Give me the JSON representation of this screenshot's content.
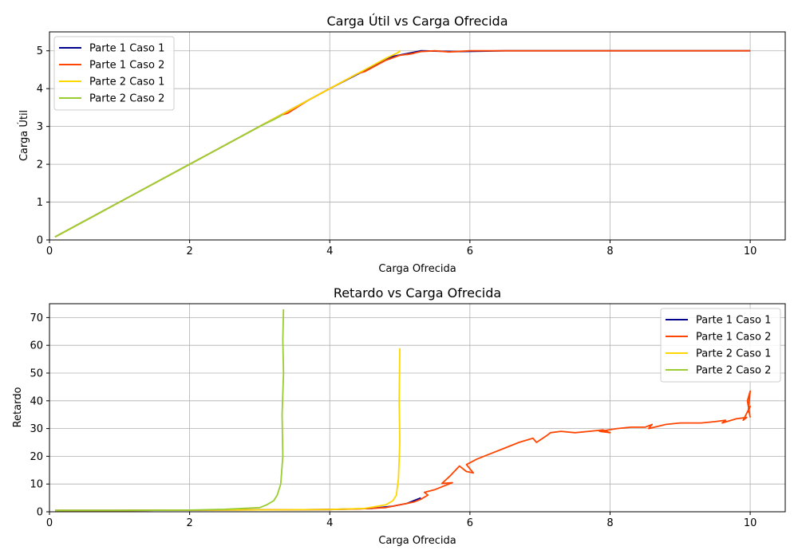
{
  "chart_data": [
    {
      "type": "line",
      "title": "Carga Útil vs Carga Ofrecida",
      "xlabel": "Carga Ofrecida",
      "ylabel": "Carga Útil",
      "xlim": [
        0,
        10.5
      ],
      "ylim": [
        0,
        5.5
      ],
      "xticks": [
        0,
        2,
        4,
        6,
        8,
        10
      ],
      "yticks": [
        0,
        1,
        2,
        3,
        4,
        5
      ],
      "grid": true,
      "legend": "top-left",
      "series": [
        {
          "name": "Parte 1 Caso 1",
          "color": "#00008b",
          "x": [
            0.08,
            1,
            2,
            3,
            4,
            4.5,
            4.9,
            5.3,
            5.8,
            6.5,
            7.5,
            8.5,
            9.5,
            10
          ],
          "y": [
            0.08,
            1,
            2,
            3,
            4,
            4.48,
            4.85,
            5.0,
            4.98,
            5.0,
            5.0,
            5.0,
            5.0,
            5.0
          ]
        },
        {
          "name": "Parte 1 Caso 2",
          "color": "#ff4500",
          "x": [
            0.08,
            1,
            2,
            3,
            3.3,
            3.4,
            3.7,
            4.0,
            4.4,
            4.5,
            4.6,
            4.8,
            5.0,
            5.2,
            5.1,
            5.3,
            5.5,
            5.7,
            6.0,
            6.5,
            7.0,
            7.5,
            8.0,
            8.5,
            9.0,
            9.5,
            9.8,
            10
          ],
          "y": [
            0.08,
            1,
            2,
            3,
            3.3,
            3.35,
            3.7,
            4.0,
            4.4,
            4.45,
            4.55,
            4.75,
            4.88,
            4.93,
            4.9,
            4.98,
            5.0,
            4.97,
            5.0,
            5.0,
            5.0,
            5.0,
            5.0,
            5.0,
            5.0,
            5.0,
            5.0,
            5.0
          ]
        },
        {
          "name": "Parte 2 Caso 1",
          "color": "#ffd700",
          "x": [
            0.08,
            1,
            2,
            3,
            4,
            4.5,
            4.8,
            4.95,
            5.0,
            4.98,
            5.0
          ],
          "y": [
            0.08,
            1,
            2,
            3,
            4,
            4.5,
            4.8,
            4.93,
            4.98,
            4.97,
            5.0
          ]
        },
        {
          "name": "Parte 2 Caso 2",
          "color": "#9acd32",
          "x": [
            0.08,
            1,
            2,
            2.5,
            3,
            3.2,
            3.3,
            3.33
          ],
          "y": [
            0.08,
            1,
            2,
            2.5,
            3,
            3.18,
            3.28,
            3.32
          ]
        }
      ]
    },
    {
      "type": "line",
      "title": "Retardo vs Carga Ofrecida",
      "xlabel": "Carga Ofrecida",
      "ylabel": "Retardo",
      "xlim": [
        0,
        10.5
      ],
      "ylim": [
        0,
        75
      ],
      "xticks": [
        0,
        2,
        4,
        6,
        8,
        10
      ],
      "yticks": [
        0,
        10,
        20,
        30,
        40,
        50,
        60,
        70
      ],
      "grid": true,
      "legend": "top-right",
      "series": [
        {
          "name": "Parte 1 Caso 1",
          "color": "#00008b",
          "x": [
            0.08,
            1,
            2,
            3,
            4,
            4.6,
            4.9,
            5.1,
            5.3
          ],
          "y": [
            0.5,
            0.5,
            0.6,
            0.7,
            0.8,
            1.2,
            2.0,
            3.0,
            5.0
          ]
        },
        {
          "name": "Parte 1 Caso 2",
          "color": "#ff4500",
          "x": [
            0.08,
            1,
            2,
            3,
            4,
            4.4,
            4.8,
            4.9,
            5.0,
            5.2,
            5.3,
            5.4,
            5.35,
            5.5,
            5.65,
            5.75,
            5.6,
            5.72,
            5.85,
            5.95,
            6.05,
            5.95,
            6.1,
            6.3,
            6.5,
            6.7,
            6.9,
            6.95,
            7.1,
            7.15,
            7.3,
            7.5,
            7.7,
            7.9,
            8.0,
            7.85,
            8.1,
            8.3,
            8.5,
            8.6,
            8.55,
            8.8,
            9.0,
            9.2,
            9.3,
            9.5,
            9.65,
            9.6,
            9.8,
            9.95,
            9.9,
            10.0,
            9.97,
            10.0,
            9.96,
            10.0
          ],
          "y": [
            0.5,
            0.5,
            0.6,
            0.7,
            0.8,
            1.0,
            1.5,
            2.0,
            2.5,
            3.5,
            4.5,
            6.0,
            7.0,
            8.0,
            9.5,
            10.5,
            10.2,
            13.0,
            16.5,
            14.5,
            14.0,
            17.0,
            19.0,
            21.0,
            23.0,
            25.0,
            26.5,
            25.0,
            27.5,
            28.5,
            29.0,
            28.5,
            29.0,
            29.5,
            28.5,
            29.0,
            30.0,
            30.5,
            30.5,
            31.5,
            30.0,
            31.5,
            32.0,
            32.0,
            32.0,
            32.5,
            33.0,
            32.0,
            33.5,
            34.0,
            33.0,
            38.0,
            36.0,
            43.5,
            40.0,
            34.0
          ]
        },
        {
          "name": "Parte 2 Caso 1",
          "color": "#ffd700",
          "x": [
            0.08,
            1,
            2,
            3,
            4,
            4.5,
            4.8,
            4.9,
            4.95,
            4.98,
            5.0,
            4.99,
            5.0
          ],
          "y": [
            0.5,
            0.5,
            0.6,
            0.7,
            0.8,
            1.2,
            2.5,
            4.0,
            6.0,
            12.0,
            25.0,
            40.0,
            59.0
          ]
        },
        {
          "name": "Parte 2 Caso 2",
          "color": "#9acd32",
          "x": [
            0.08,
            1,
            2,
            2.5,
            3,
            3.1,
            3.2,
            3.25,
            3.3,
            3.33,
            3.32,
            3.34,
            3.33,
            3.34
          ],
          "y": [
            0.5,
            0.5,
            0.6,
            0.9,
            1.5,
            2.5,
            4.0,
            6.0,
            10.0,
            20.0,
            35.0,
            50.0,
            62.0,
            73.0
          ]
        }
      ]
    }
  ]
}
